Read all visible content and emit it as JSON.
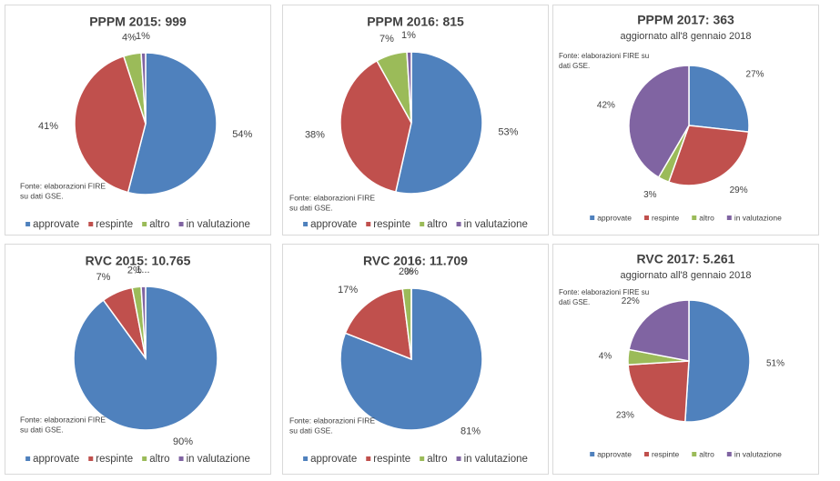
{
  "chart_data": [
    {
      "type": "pie",
      "title": "PPPM 2015: 999",
      "source": [
        "Fonte: elaborazioni FIRE",
        "su dati GSE."
      ],
      "categories": [
        "approvate",
        "respinte",
        "altro",
        "in valutazione"
      ],
      "colors": [
        "#4f81bd",
        "#c0504d",
        "#9bbb59",
        "#8064a2"
      ],
      "values": [
        54,
        41,
        4,
        1
      ],
      "value_labels": [
        "54%",
        "41%",
        "4%",
        "1%"
      ],
      "legend": "bottom"
    },
    {
      "type": "pie",
      "title": "PPPM 2016: 815",
      "source": [
        "Fonte: elaborazioni FIRE",
        "su dati GSE."
      ],
      "categories": [
        "approvate",
        "respinte",
        "altro",
        "in valutazione"
      ],
      "colors": [
        "#4f81bd",
        "#c0504d",
        "#9bbb59",
        "#8064a2"
      ],
      "values": [
        53,
        38,
        7,
        1
      ],
      "value_labels": [
        "53%",
        "38%",
        "7%",
        "1%"
      ],
      "legend": "bottom"
    },
    {
      "type": "pie",
      "title": "PPPM 2017: 363",
      "subtitle": "aggiornato all'8 gennaio 2018",
      "source": [
        "Fonte: elaborazioni FIRE su",
        "dati GSE."
      ],
      "categories": [
        "approvate",
        "respinte",
        "altro",
        "in valutazione"
      ],
      "colors": [
        "#4f81bd",
        "#c0504d",
        "#9bbb59",
        "#8064a2"
      ],
      "values": [
        27,
        29,
        3,
        42
      ],
      "value_labels": [
        "27%",
        "29%",
        "3%",
        "42%"
      ],
      "legend": "bottom"
    },
    {
      "type": "pie",
      "title": "RVC 2015: 10.765",
      "source": [
        "Fonte: elaborazioni FIRE",
        "su dati GSE."
      ],
      "categories": [
        "approvate",
        "respinte",
        "altro",
        "in valutazione"
      ],
      "colors": [
        "#4f81bd",
        "#c0504d",
        "#9bbb59",
        "#8064a2"
      ],
      "values": [
        90,
        7,
        2,
        1
      ],
      "value_labels": [
        "90%",
        "7%",
        "2%",
        "1..."
      ],
      "legend": "bottom"
    },
    {
      "type": "pie",
      "title": "RVC 2016: 11.709",
      "source": [
        "Fonte: elaborazioni FIRE",
        "su dati GSE."
      ],
      "categories": [
        "approvate",
        "respinte",
        "altro",
        "in valutazione"
      ],
      "colors": [
        "#4f81bd",
        "#c0504d",
        "#9bbb59",
        "#8064a2"
      ],
      "values": [
        81,
        17,
        2,
        0
      ],
      "value_labels": [
        "81%",
        "17%",
        "2%",
        "0%"
      ],
      "legend": "bottom"
    },
    {
      "type": "pie",
      "title": "RVC 2017: 5.261",
      "subtitle": "aggiornato all'8 gennaio 2018",
      "source": [
        "Fonte: elaborazioni FIRE su",
        "dati GSE."
      ],
      "categories": [
        "approvate",
        "respinte",
        "altro",
        "in valutazione"
      ],
      "colors": [
        "#4f81bd",
        "#c0504d",
        "#9bbb59",
        "#8064a2"
      ],
      "values": [
        51,
        23,
        4,
        22
      ],
      "value_labels": [
        "51%",
        "23%",
        "4%",
        "22%"
      ],
      "legend": "bottom"
    }
  ]
}
